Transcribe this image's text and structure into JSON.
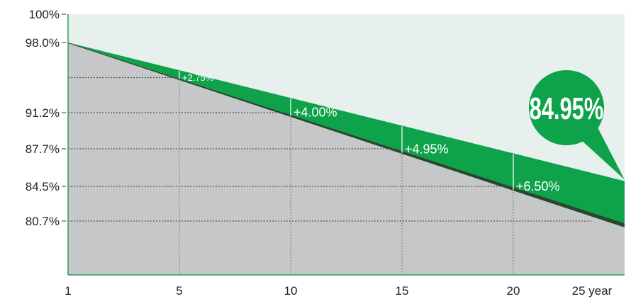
{
  "chart_data": {
    "type": "area",
    "x_ticks": [
      "1",
      "5",
      "10",
      "15",
      "20",
      "25 year"
    ],
    "y_ticks": [
      "100%",
      "98.0%",
      "91.2%",
      "87.7%",
      "84.5%",
      "80.7%"
    ],
    "x_range": [
      1,
      26
    ],
    "y_range": [
      77.0,
      100
    ],
    "series": [
      {
        "x": [
          1,
          26
        ],
        "y": [
          98.0,
          84.95
        ]
      },
      {
        "x": [
          1,
          26
        ],
        "y": [
          98.0,
          80.0
        ]
      }
    ],
    "gains": [
      {
        "x": 6,
        "label": "+2.75%"
      },
      {
        "x": 11,
        "label": "+4.00%"
      },
      {
        "x": 16,
        "label": "+4.95%"
      },
      {
        "x": 21,
        "label": "+6.50%"
      }
    ],
    "callout": "84.95%",
    "reference_lines": [
      {
        "x": 6,
        "y": 94.6
      },
      {
        "x": 11,
        "y": 91.2
      },
      {
        "x": 16,
        "y": 87.7
      },
      {
        "x": 21,
        "y": 84.5
      },
      {
        "x": 26,
        "y": 80.7
      }
    ]
  },
  "colors": {
    "upper_area": "#e8f0ee",
    "lower_area": "#c6c7c9",
    "green_band": "#0ea34a",
    "dark_edge": "#244a2c",
    "axis": "#2f9e55",
    "callout": "#0ea34a",
    "grid": "#555555"
  }
}
